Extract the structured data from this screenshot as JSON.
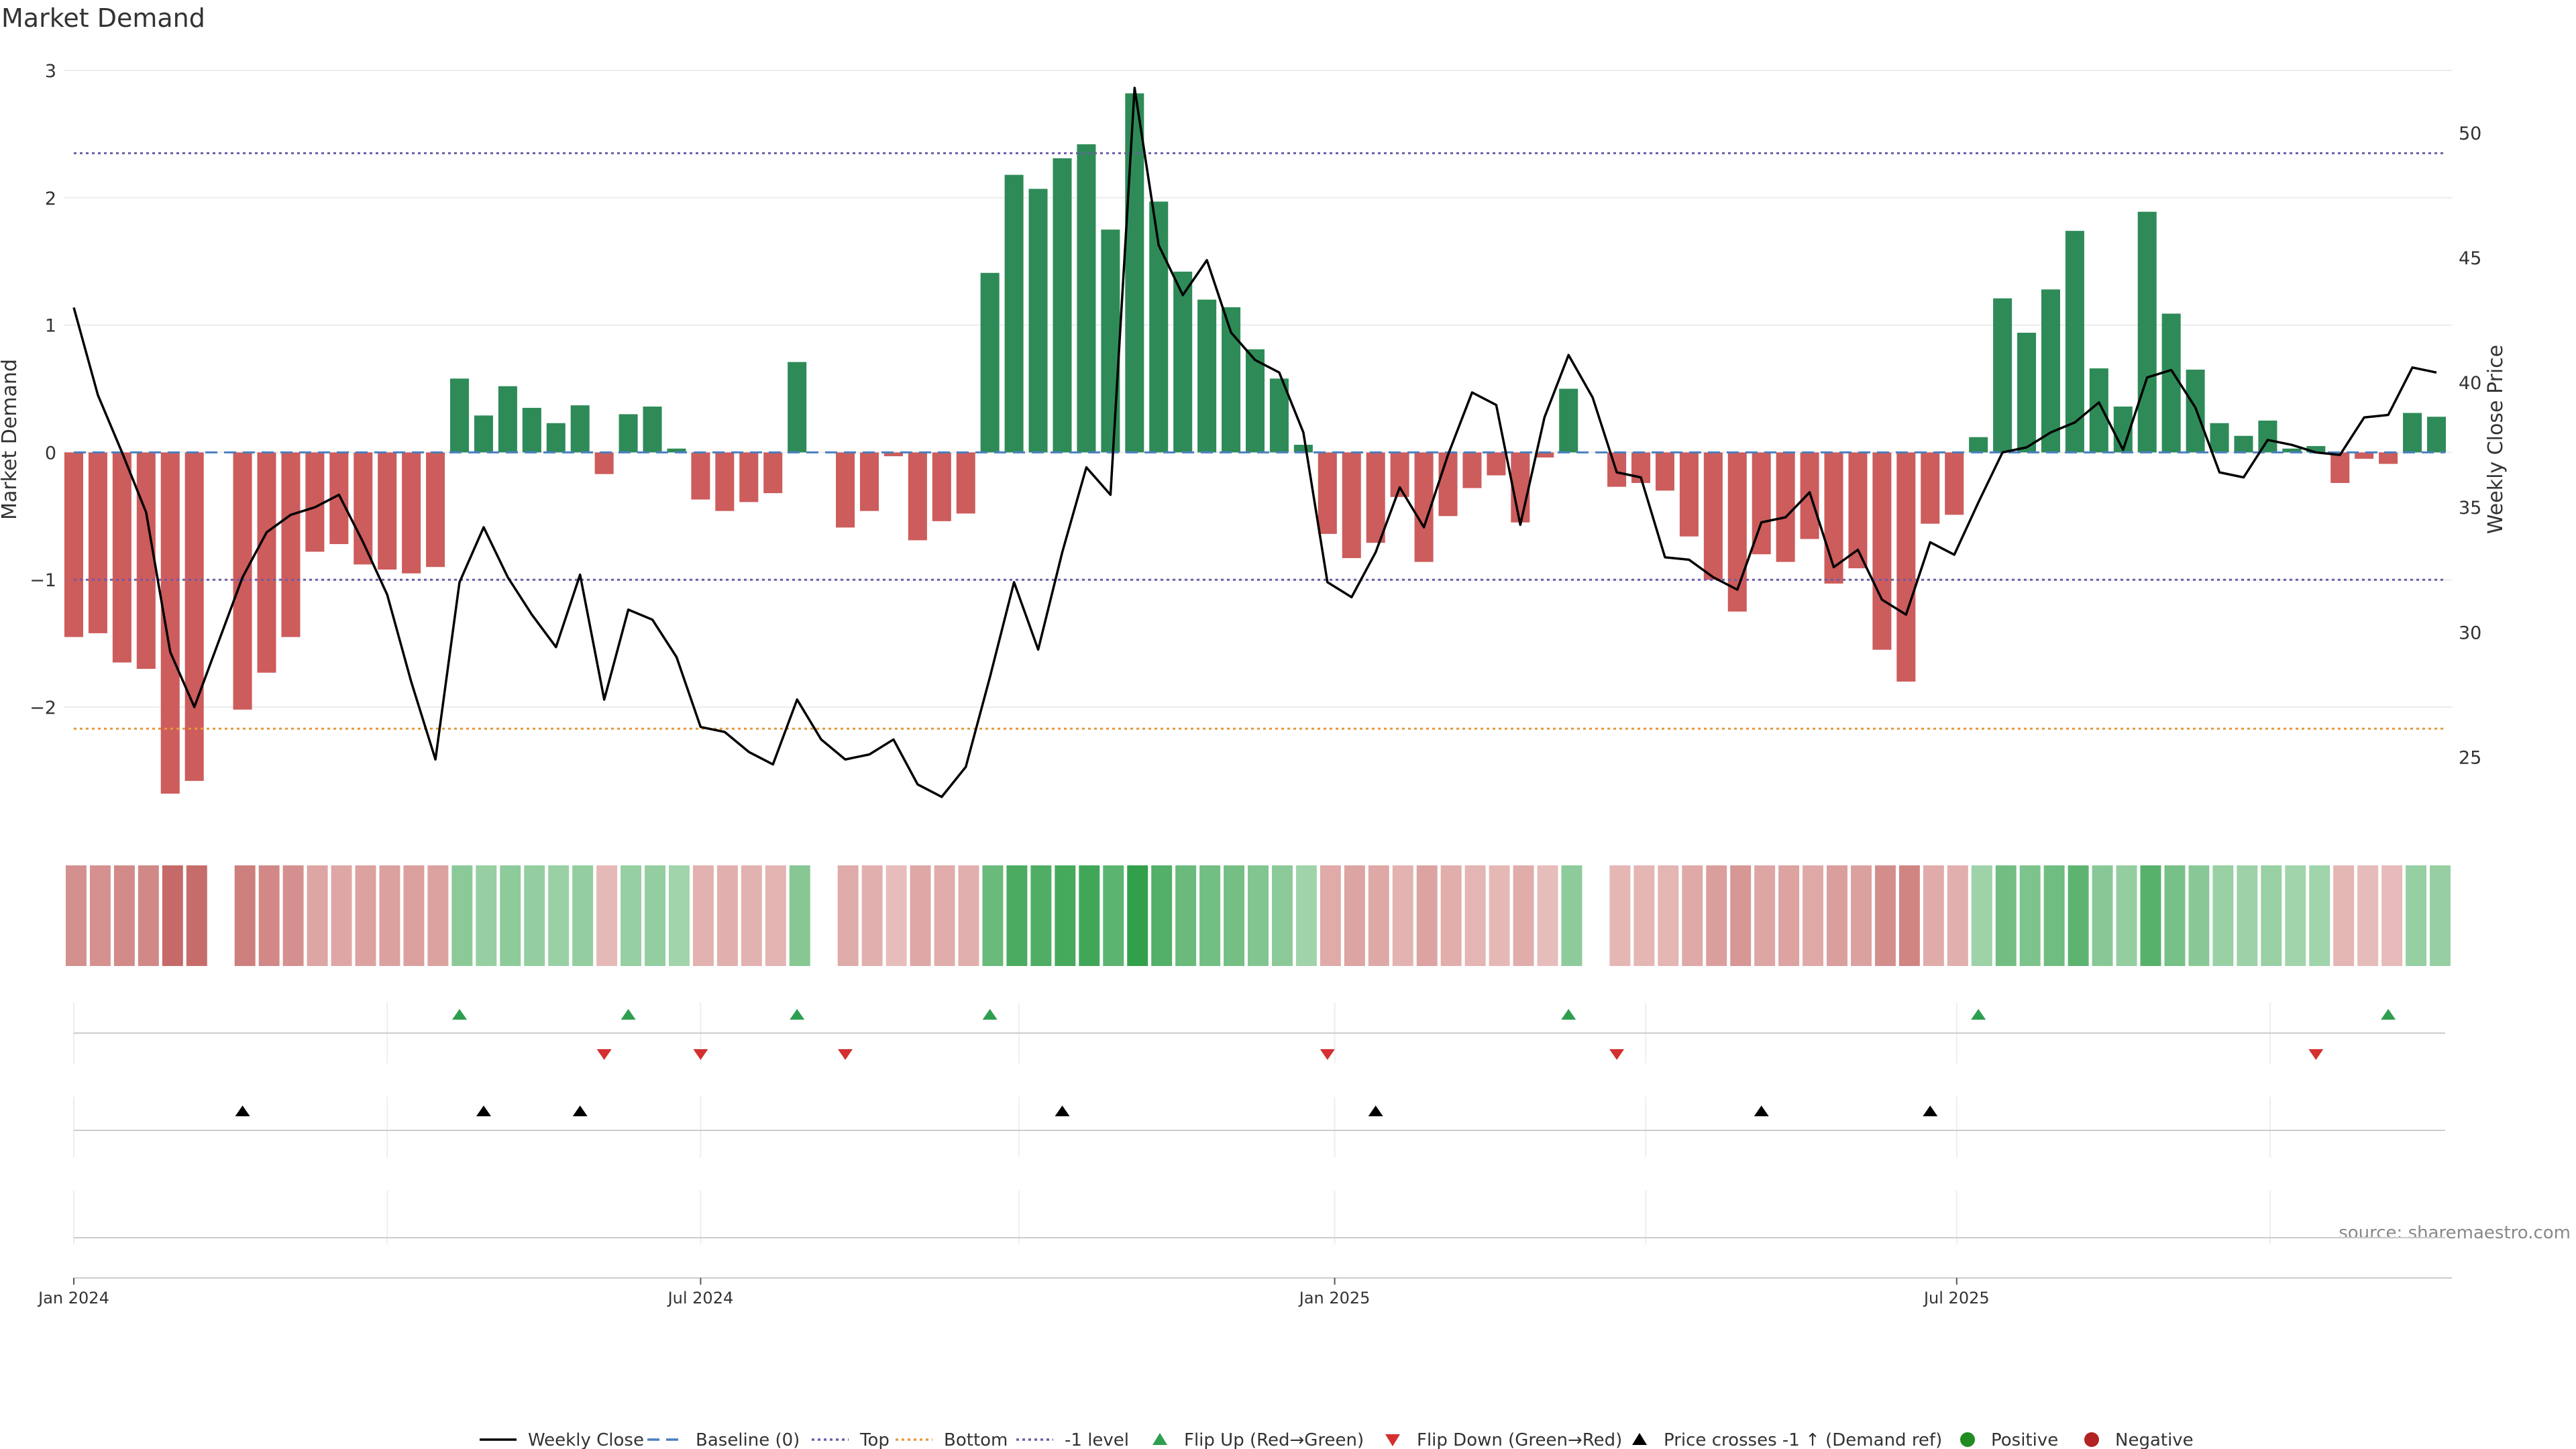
{
  "chart_data": {
    "type": "bar",
    "title": "Market Demand",
    "ylabel": "Market Demand",
    "y2label": "Weekly Close Price",
    "source": "source: sharemaestro.com",
    "ylim": [
      -2.98,
      3.0
    ],
    "y2lim": [
      22.0,
      52.5
    ],
    "yticks": [
      -2,
      -1,
      0,
      1,
      2,
      3
    ],
    "yticklabels": [
      "−2",
      "−1",
      "0",
      "1",
      "2",
      "3"
    ],
    "y2ticks": [
      25,
      30,
      35,
      40,
      45,
      50
    ],
    "x_ticks": [
      {
        "index": 0,
        "label": "Jan 2024"
      },
      {
        "index": 26,
        "label": "Jul 2024"
      },
      {
        "index": 52.3,
        "label": "Jan 2025"
      },
      {
        "index": 78.1,
        "label": "Jul 2025"
      }
    ],
    "x_grid_index": [
      0,
      13,
      26,
      39.2,
      52.3,
      65.2,
      78.1,
      91.1
    ],
    "reference_lines": {
      "baseline": 0,
      "top": 2.35,
      "bottom": -2.17,
      "minus_one": -1
    },
    "demand": [
      -1.45,
      -1.42,
      -1.65,
      -1.7,
      -2.68,
      -2.58,
      0,
      -2.02,
      -1.73,
      -1.45,
      -0.78,
      -0.72,
      -0.88,
      -0.92,
      -0.95,
      -0.9,
      0.58,
      0.29,
      0.52,
      0.35,
      0.23,
      0.37,
      -0.17,
      0.3,
      0.36,
      0.03,
      -0.37,
      -0.46,
      -0.39,
      -0.32,
      0.71,
      0,
      -0.59,
      -0.46,
      -0.03,
      -0.69,
      -0.54,
      -0.48,
      1.41,
      2.18,
      2.07,
      2.31,
      2.42,
      1.75,
      2.82,
      1.97,
      1.42,
      1.2,
      1.14,
      0.81,
      0.58,
      0.06,
      -0.64,
      -0.83,
      -0.71,
      -0.35,
      -0.86,
      -0.5,
      -0.28,
      -0.18,
      -0.55,
      -0.04,
      0.5,
      0,
      -0.27,
      -0.24,
      -0.3,
      -0.66,
      -1.0,
      -1.25,
      -0.8,
      -0.86,
      -0.68,
      -1.03,
      -0.91,
      -1.55,
      -1.8,
      -0.56,
      -0.49,
      0.12,
      1.21,
      0.94,
      1.28,
      1.74,
      0.66,
      0.36,
      1.89,
      1.09,
      0.65,
      0.23,
      0.13,
      0.25,
      0.03,
      0.05,
      -0.24,
      -0.05,
      -0.09,
      0.31,
      0.28
    ],
    "close": [
      43.0,
      39.5,
      37.2,
      34.8,
      29.2,
      27.0,
      29.6,
      32.2,
      34.0,
      34.7,
      35.0,
      35.5,
      33.6,
      31.5,
      28.0,
      24.9,
      32.0,
      34.2,
      32.2,
      30.7,
      29.4,
      32.3,
      27.3,
      30.9,
      30.5,
      29.0,
      26.2,
      26.0,
      25.2,
      24.7,
      27.3,
      25.7,
      24.9,
      25.1,
      25.7,
      23.9,
      23.4,
      24.6,
      28.2,
      32.0,
      29.3,
      33.2,
      36.6,
      35.5,
      51.8,
      45.5,
      43.5,
      44.9,
      42.0,
      40.9,
      40.4,
      38.0,
      32.0,
      31.4,
      33.2,
      35.8,
      34.2,
      37.1,
      39.6,
      39.1,
      34.3,
      38.6,
      41.1,
      39.4,
      36.4,
      36.2,
      33.0,
      32.9,
      32.2,
      31.7,
      34.4,
      34.6,
      35.6,
      32.6,
      33.3,
      31.3,
      30.7,
      33.6,
      33.1,
      35.2,
      37.2,
      37.4,
      38.0,
      38.4,
      39.2,
      37.3,
      40.2,
      40.5,
      39.0,
      36.4,
      36.2,
      37.7,
      37.5,
      37.2,
      37.1,
      38.6,
      38.7,
      40.6,
      40.4
    ],
    "flip_up_index": [
      16,
      23,
      30,
      38,
      62,
      79,
      96
    ],
    "flip_down_index": [
      22,
      26,
      32,
      52,
      64,
      93
    ],
    "price_cross_index": [
      7,
      17,
      21,
      41,
      54,
      70,
      77
    ],
    "legend": [
      {
        "key": "close",
        "label": "Weekly Close"
      },
      {
        "key": "baseline",
        "label": "Baseline (0)"
      },
      {
        "key": "top",
        "label": "Top"
      },
      {
        "key": "bottom",
        "label": "Bottom"
      },
      {
        "key": "minus_one",
        "label": "-1 level"
      },
      {
        "key": "flip_up",
        "label": "Flip Up (Red→Green)"
      },
      {
        "key": "flip_down",
        "label": "Flip Down (Green→Red)"
      },
      {
        "key": "cross",
        "label": "Price crosses -1 ↑ (Demand ref)"
      },
      {
        "key": "positive",
        "label": "Positive"
      },
      {
        "key": "negative",
        "label": "Negative"
      }
    ],
    "colors": {
      "positive": "#2e8b57",
      "negative": "#cd5c5c",
      "close": "#000000",
      "baseline": "#4a7fbf",
      "top": "#6c5ba8",
      "bottom": "#e39a3a",
      "minus_one": "#6c5ba8",
      "flip_up": "#2e9e4f",
      "flip_down": "#d3302f",
      "cross": "#000000",
      "positive_dot": "#228b22",
      "negative_dot": "#b22222"
    }
  }
}
